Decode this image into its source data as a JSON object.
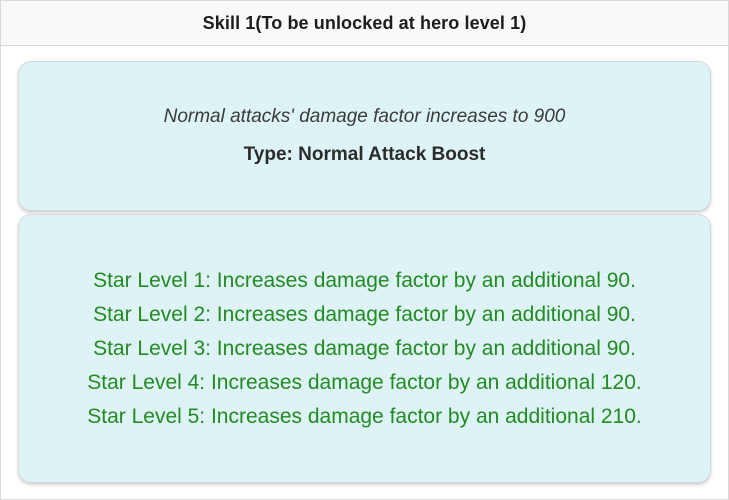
{
  "header": {
    "title": "Skill 1(To be unlocked at hero level 1)"
  },
  "skill_info": {
    "description": "Normal attacks' damage factor increases to 900",
    "type_label": "Type: Normal Attack Boost"
  },
  "star_levels": {
    "items": [
      {
        "text": "Star Level 1: Increases damage factor by an additional 90."
      },
      {
        "text": "Star Level 2: Increases damage factor by an additional 90."
      },
      {
        "text": "Star Level 3: Increases damage factor by an additional 90."
      },
      {
        "text": "Star Level 4: Increases damage factor by an additional 120."
      },
      {
        "text": "Star Level 5: Increases damage factor by an additional 210."
      }
    ]
  },
  "colors": {
    "card_background": "#def3f6",
    "star_level_text": "#228B22",
    "header_background": "#f8f9fa",
    "header_text": "#1c1c1c",
    "description_text": "#3b3b3b"
  }
}
